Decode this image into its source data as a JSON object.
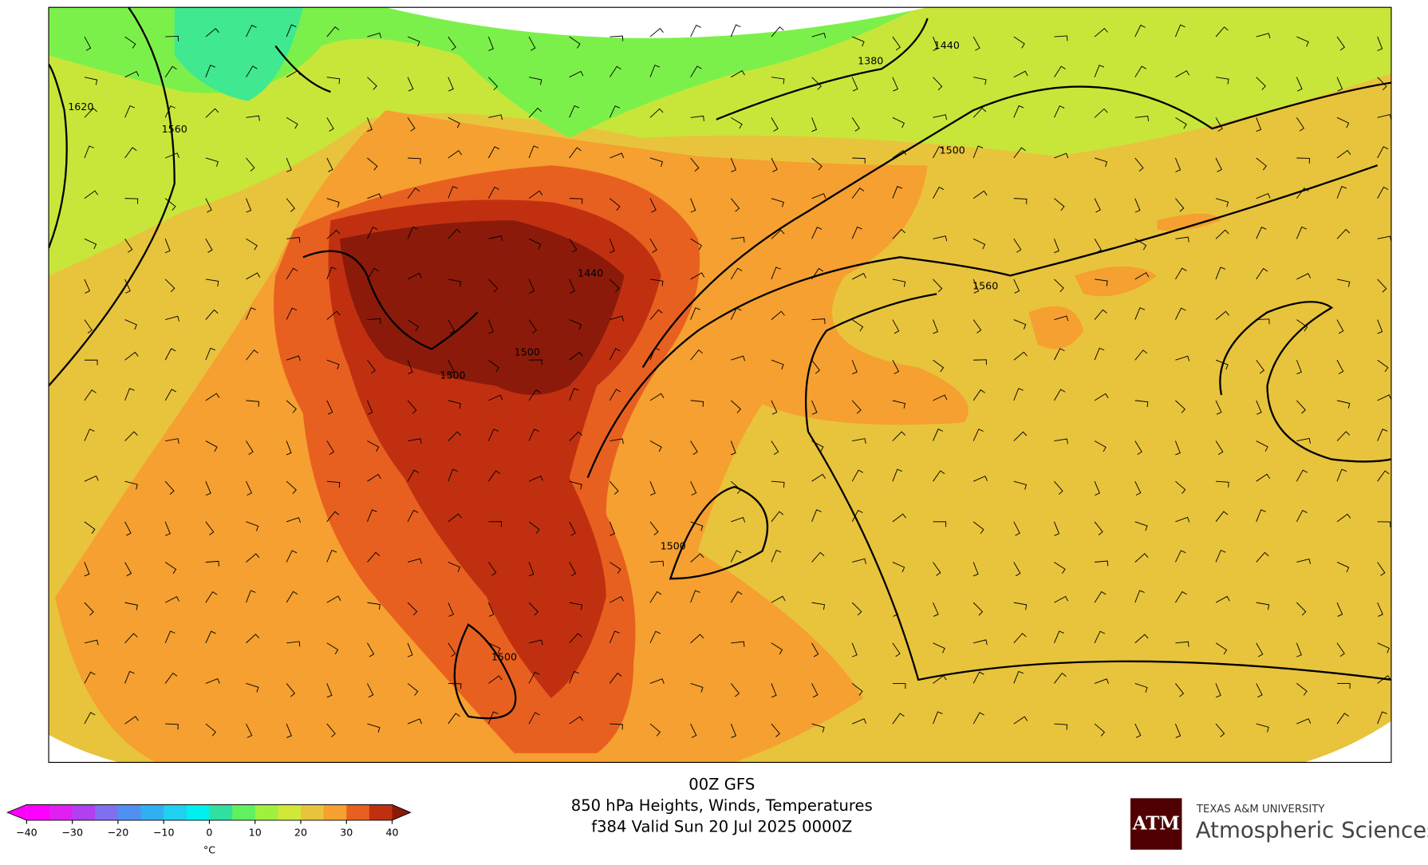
{
  "title_lines": [
    "00Z GFS",
    "850 hPa Heights, Winds, Temperatures",
    "f384 Valid Sun 20 Jul 2025 0000Z"
  ],
  "contour_labels": [
    "1620",
    "1560",
    "1440",
    "1380",
    "1500",
    "1440",
    "1560",
    "1500",
    "1500",
    "1500",
    "1500"
  ],
  "colorbar": {
    "ticks": [
      {
        "value": -40,
        "label": "−40"
      },
      {
        "value": -30,
        "label": "−30"
      },
      {
        "value": -20,
        "label": "−20"
      },
      {
        "value": -10,
        "label": "−10"
      },
      0,
      10,
      20,
      30,
      40
    ],
    "lim": [
      -40,
      40
    ],
    "unit": "°C",
    "colors": [
      "#ff00ff",
      "#e020f0",
      "#b040f0",
      "#8070f0",
      "#5090f0",
      "#30b0f0",
      "#20d0f0",
      "#00f0f0",
      "#30e0a0",
      "#60f060",
      "#a0f040",
      "#d0e838",
      "#e8c43c",
      "#f5a030",
      "#e86020",
      "#c03010"
    ],
    "extend_colors": [
      "#ff00ff",
      "#8b1a0a"
    ]
  },
  "logo": {
    "mark": "ATM",
    "university": "TEXAS A&M UNIVERSITY",
    "department": "Atmospheric Sciences"
  }
}
